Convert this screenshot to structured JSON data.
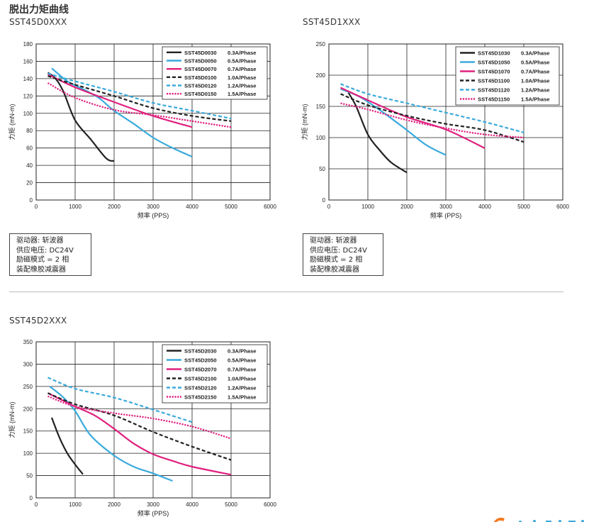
{
  "page": {
    "title": "脱出力矩曲线",
    "divider_color": "#bbbbbb"
  },
  "colors": {
    "black": "#222222",
    "cyan": "#3aaadc",
    "magenta": "#e0207e",
    "dash_black": "#222222",
    "dash_cyan": "#3aaadc",
    "dash_magenta": "#e0207e"
  },
  "conditions": [
    {
      "lines": [
        "驱动器: 斩波器",
        "供应电压: DC24V",
        "励磁模式 = 2 相",
        "装配橡胶减震器"
      ]
    },
    {
      "lines": [
        "驱动器: 斩波器",
        "供应电压: DC24V",
        "励磁模式 = 2 相",
        "装配橡胶减震器"
      ]
    }
  ],
  "chart_data": [
    {
      "id_label": "SST45D0XXX",
      "type": "line",
      "title": "",
      "xlabel": "频率 (PPS)",
      "ylabel": "力矩 (mN-m)",
      "xlim": [
        0,
        6000
      ],
      "ylim": [
        0,
        180
      ],
      "xticks": [
        "0",
        "1000",
        "2000",
        "3000",
        "4000",
        "5000",
        "6000"
      ],
      "yticks": [
        "0",
        "20",
        "40",
        "60",
        "80",
        "100",
        "120",
        "140",
        "160",
        "180"
      ],
      "grid": true,
      "legend_position": "top-right",
      "series": [
        {
          "name": "SST45D0030",
          "current": "0.3A/Phase",
          "style": "solid",
          "color": "#222222",
          "x": [
            300,
            500,
            700,
            1000,
            1400,
            1800,
            2000
          ],
          "y": [
            147,
            140,
            125,
            92,
            70,
            48,
            45
          ]
        },
        {
          "name": "SST45D0050",
          "current": "0.5A/Phase",
          "style": "solid",
          "color": "#3aaadc",
          "x": [
            400,
            800,
            1200,
            1600,
            2000,
            2500,
            3000,
            3500,
            4000
          ],
          "y": [
            152,
            137,
            128,
            118,
            103,
            88,
            72,
            60,
            50
          ]
        },
        {
          "name": "SST45D0070",
          "current": "0.7A/Phase",
          "style": "solid",
          "color": "#e0207e",
          "x": [
            300,
            1000,
            2000,
            3000,
            4000
          ],
          "y": [
            145,
            130,
            113,
            97,
            84
          ]
        },
        {
          "name": "SST45D0100",
          "current": "1.0A/Phase",
          "style": "dashed",
          "color": "#222222",
          "x": [
            300,
            1000,
            2000,
            3000,
            4000,
            5000
          ],
          "y": [
            143,
            133,
            120,
            106,
            97,
            91
          ]
        },
        {
          "name": "SST45D0120",
          "current": "1.2A/Phase",
          "style": "dashed",
          "color": "#3aaadc",
          "x": [
            300,
            1000,
            2000,
            3000,
            4000,
            5000
          ],
          "y": [
            146,
            137,
            125,
            112,
            103,
            94
          ]
        },
        {
          "name": "SST45D0150",
          "current": "1.5A/Phase",
          "style": "dotted",
          "color": "#e0207e",
          "x": [
            300,
            1000,
            2000,
            3000,
            4000,
            5000
          ],
          "y": [
            135,
            118,
            104,
            98,
            91,
            84
          ]
        }
      ]
    },
    {
      "id_label": "SST45D1XXX",
      "type": "line",
      "title": "",
      "xlabel": "频率 (PPS)",
      "ylabel": "力矩 (mN-m)",
      "xlim": [
        0,
        6000
      ],
      "ylim": [
        0,
        250
      ],
      "xticks": [
        "0",
        "1000",
        "2000",
        "3000",
        "4000",
        "5000",
        "6000"
      ],
      "yticks": [
        "0",
        "50",
        "100",
        "150",
        "200",
        "250"
      ],
      "grid": true,
      "legend_position": "top-right",
      "series": [
        {
          "name": "SST45D1030",
          "current": "0.3A/Phase",
          "style": "solid",
          "color": "#222222",
          "x": [
            500,
            700,
            1000,
            1300,
            1600,
            2000
          ],
          "y": [
            172,
            150,
            105,
            80,
            60,
            44
          ]
        },
        {
          "name": "SST45D1050",
          "current": "0.5A/Phase",
          "style": "solid",
          "color": "#3aaadc",
          "x": [
            300,
            800,
            1400,
            2000,
            2500,
            3000
          ],
          "y": [
            178,
            165,
            140,
            112,
            88,
            72
          ]
        },
        {
          "name": "SST45D1070",
          "current": "0.7A/Phase",
          "style": "solid",
          "color": "#e0207e",
          "x": [
            300,
            1000,
            2000,
            3000,
            4000
          ],
          "y": [
            180,
            160,
            133,
            113,
            83
          ]
        },
        {
          "name": "SST45D1100",
          "current": "1.0A/Phase",
          "style": "dashed",
          "color": "#222222",
          "x": [
            300,
            1000,
            2000,
            3000,
            4000,
            5000
          ],
          "y": [
            170,
            152,
            135,
            122,
            112,
            93
          ]
        },
        {
          "name": "SST45D1120",
          "current": "1.2A/Phase",
          "style": "dashed",
          "color": "#3aaadc",
          "x": [
            300,
            1000,
            2000,
            3000,
            4000,
            5000
          ],
          "y": [
            186,
            170,
            155,
            140,
            125,
            108
          ]
        },
        {
          "name": "SST45D1150",
          "current": "1.5A/Phase",
          "style": "dotted",
          "color": "#e0207e",
          "x": [
            300,
            1000,
            2000,
            3000,
            4000,
            5000
          ],
          "y": [
            155,
            145,
            128,
            115,
            105,
            100
          ]
        }
      ]
    },
    {
      "id_label": "SST45D2XXX",
      "type": "line",
      "title": "",
      "xlabel": "频率 (PPS)",
      "ylabel": "力矩 (mN-m)",
      "xlim": [
        0,
        6000
      ],
      "ylim": [
        0,
        350
      ],
      "xticks": [
        "0",
        "1000",
        "2000",
        "3000",
        "4000",
        "5000",
        "6000"
      ],
      "yticks": [
        "0",
        "50",
        "100",
        "150",
        "200",
        "250",
        "300",
        "350"
      ],
      "grid": true,
      "legend_position": "top-right",
      "series": [
        {
          "name": "SST45D2030",
          "current": "0.3A/Phase",
          "style": "solid",
          "color": "#222222",
          "x": [
            400,
            600,
            800,
            1000,
            1200
          ],
          "y": [
            180,
            135,
            100,
            75,
            53
          ]
        },
        {
          "name": "SST45D2050",
          "current": "0.5A/Phase",
          "style": "solid",
          "color": "#3aaadc",
          "x": [
            350,
            700,
            1000,
            1400,
            2000,
            2500,
            3000,
            3500
          ],
          "y": [
            250,
            225,
            195,
            140,
            95,
            70,
            55,
            38
          ]
        },
        {
          "name": "SST45D2070",
          "current": "0.7A/Phase",
          "style": "solid",
          "color": "#e0207e",
          "x": [
            300,
            1000,
            1500,
            2000,
            2500,
            3000,
            3500,
            4000,
            5000
          ],
          "y": [
            235,
            205,
            185,
            155,
            122,
            98,
            83,
            70,
            52
          ]
        },
        {
          "name": "SST45D2100",
          "current": "1.0A/Phase",
          "style": "dashed",
          "color": "#222222",
          "x": [
            300,
            1000,
            2000,
            3000,
            4000,
            5000
          ],
          "y": [
            235,
            210,
            185,
            148,
            115,
            85
          ]
        },
        {
          "name": "SST45D2120",
          "current": "1.2A/Phase",
          "style": "dashed",
          "color": "#3aaadc",
          "x": [
            300,
            1000,
            2000,
            3000,
            4000
          ],
          "y": [
            270,
            245,
            225,
            198,
            170
          ]
        },
        {
          "name": "SST45D2150",
          "current": "1.5A/Phase",
          "style": "dotted",
          "color": "#e0207e",
          "x": [
            300,
            1000,
            2000,
            3000,
            4000,
            5000
          ],
          "y": [
            228,
            205,
            190,
            178,
            160,
            133
          ]
        }
      ]
    }
  ]
}
